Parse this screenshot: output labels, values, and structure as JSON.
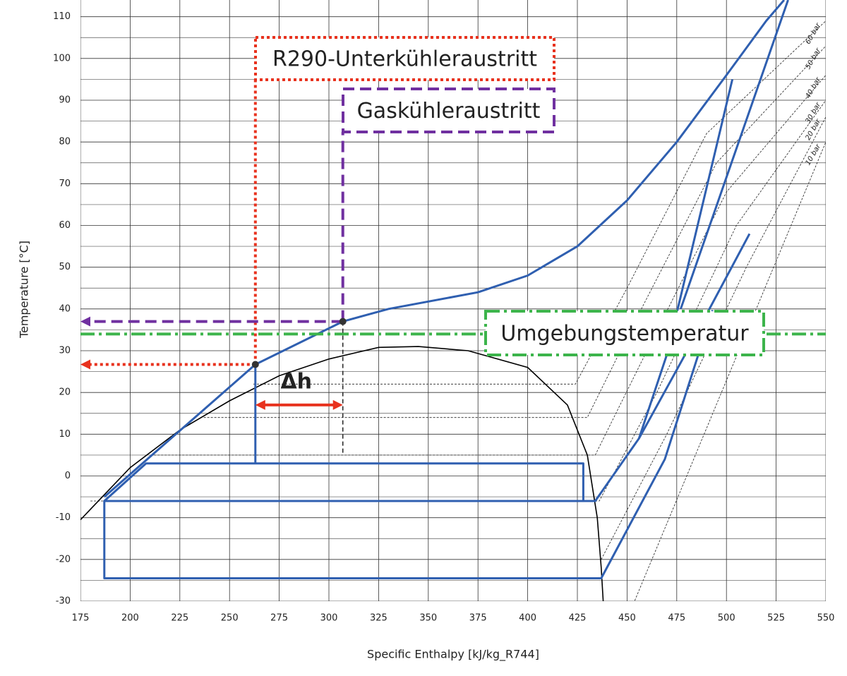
{
  "chart_data": {
    "type": "line",
    "xlabel": "Specific Enthalpy [kJ/kg_R744]",
    "ylabel": "Temperature [°C]",
    "xlim": [
      175,
      550
    ],
    "ylim": [
      -30,
      114
    ],
    "xticks": [
      175,
      200,
      225,
      250,
      275,
      300,
      325,
      350,
      375,
      400,
      425,
      450,
      475,
      500,
      525,
      550
    ],
    "yticks": [
      -30,
      -20,
      -10,
      0,
      10,
      20,
      30,
      40,
      50,
      60,
      70,
      80,
      90,
      100,
      110
    ],
    "yminorticks": [
      -25,
      -15,
      -5,
      5,
      15,
      25,
      35,
      45,
      55,
      65,
      75,
      85,
      95,
      105
    ],
    "grid": true,
    "dome": {
      "color": "#000000",
      "x": [
        175,
        200,
        225,
        250,
        275,
        300,
        325,
        345,
        370,
        400,
        420,
        430,
        435,
        437,
        438
      ],
      "y": [
        -10.5,
        2,
        11,
        18,
        24,
        28,
        30.8,
        31,
        30,
        26,
        17,
        5,
        -10,
        -22,
        -30
      ]
    },
    "cycle": {
      "color": "#2f5fb0",
      "lines": [
        {
          "x": [
            187,
            263,
            307,
            330,
            375,
            400,
            425,
            450,
            475,
            500,
            520,
            529
          ],
          "y": [
            -5,
            26.7,
            37,
            40,
            44,
            48,
            55,
            66,
            80,
            96,
            109,
            114
          ]
        },
        {
          "x": [
            263,
            263
          ],
          "y": [
            26.7,
            3
          ]
        },
        {
          "x": [
            187,
            208,
            428,
            428,
            187,
            187,
            437,
            469,
            493
          ],
          "y": [
            -6,
            3,
            3,
            -6,
            -6,
            -24.5,
            -24.5,
            4,
            39.7
          ]
        },
        {
          "x": [
            428,
            434,
            456,
            478,
            511.6
          ],
          "y": [
            -6,
            -6,
            9,
            28,
            58
          ]
        },
        {
          "x": [
            456,
            470,
            503
          ],
          "y": [
            9,
            29,
            95
          ]
        },
        {
          "x": [
            477,
            531
          ],
          "y": [
            40,
            114
          ]
        }
      ]
    },
    "isobars": [
      {
        "name": "10 bar",
        "x": [
          445,
          480,
          515,
          550
        ],
        "y": [
          -40,
          0,
          40,
          80
        ]
      },
      {
        "name": "20 bar",
        "x": [
          437,
          470,
          510,
          550
        ],
        "y": [
          -20,
          10,
          50,
          86
        ]
      },
      {
        "name": "30 bar",
        "x": [
          180,
          436,
          465,
          505,
          550
        ],
        "y": [
          -6,
          -6,
          20,
          60,
          90
        ]
      },
      {
        "name": "40 bar",
        "x": [
          212,
          434,
          460,
          500,
          550
        ],
        "y": [
          5,
          5,
          30,
          68,
          96
        ]
      },
      {
        "name": "50 bar",
        "x": [
          237,
          430,
          455,
          495,
          550
        ],
        "y": [
          14,
          14,
          38,
          75,
          103
        ]
      },
      {
        "name": "60 bar",
        "x": [
          262,
          424,
          450,
          490,
          550
        ],
        "y": [
          22,
          22,
          45,
          82,
          109
        ]
      }
    ],
    "points": [
      {
        "x": 263,
        "y": 26.7
      },
      {
        "x": 307,
        "y": 37
      }
    ],
    "annotations": [
      {
        "label": "R290-Unterkühleraustritt",
        "color": "#e8321e",
        "x": 263,
        "y": 26.7
      },
      {
        "label": "Gaskühleraustritt",
        "color": "#7030a0",
        "x": 307,
        "y": 37
      },
      {
        "label": "Umgebungstemperatur",
        "color": "#3cb44b",
        "y": 34
      }
    ],
    "delta": {
      "label": "Δh",
      "color": "#e8321e",
      "x": [
        263,
        307
      ],
      "y": 17
    }
  }
}
